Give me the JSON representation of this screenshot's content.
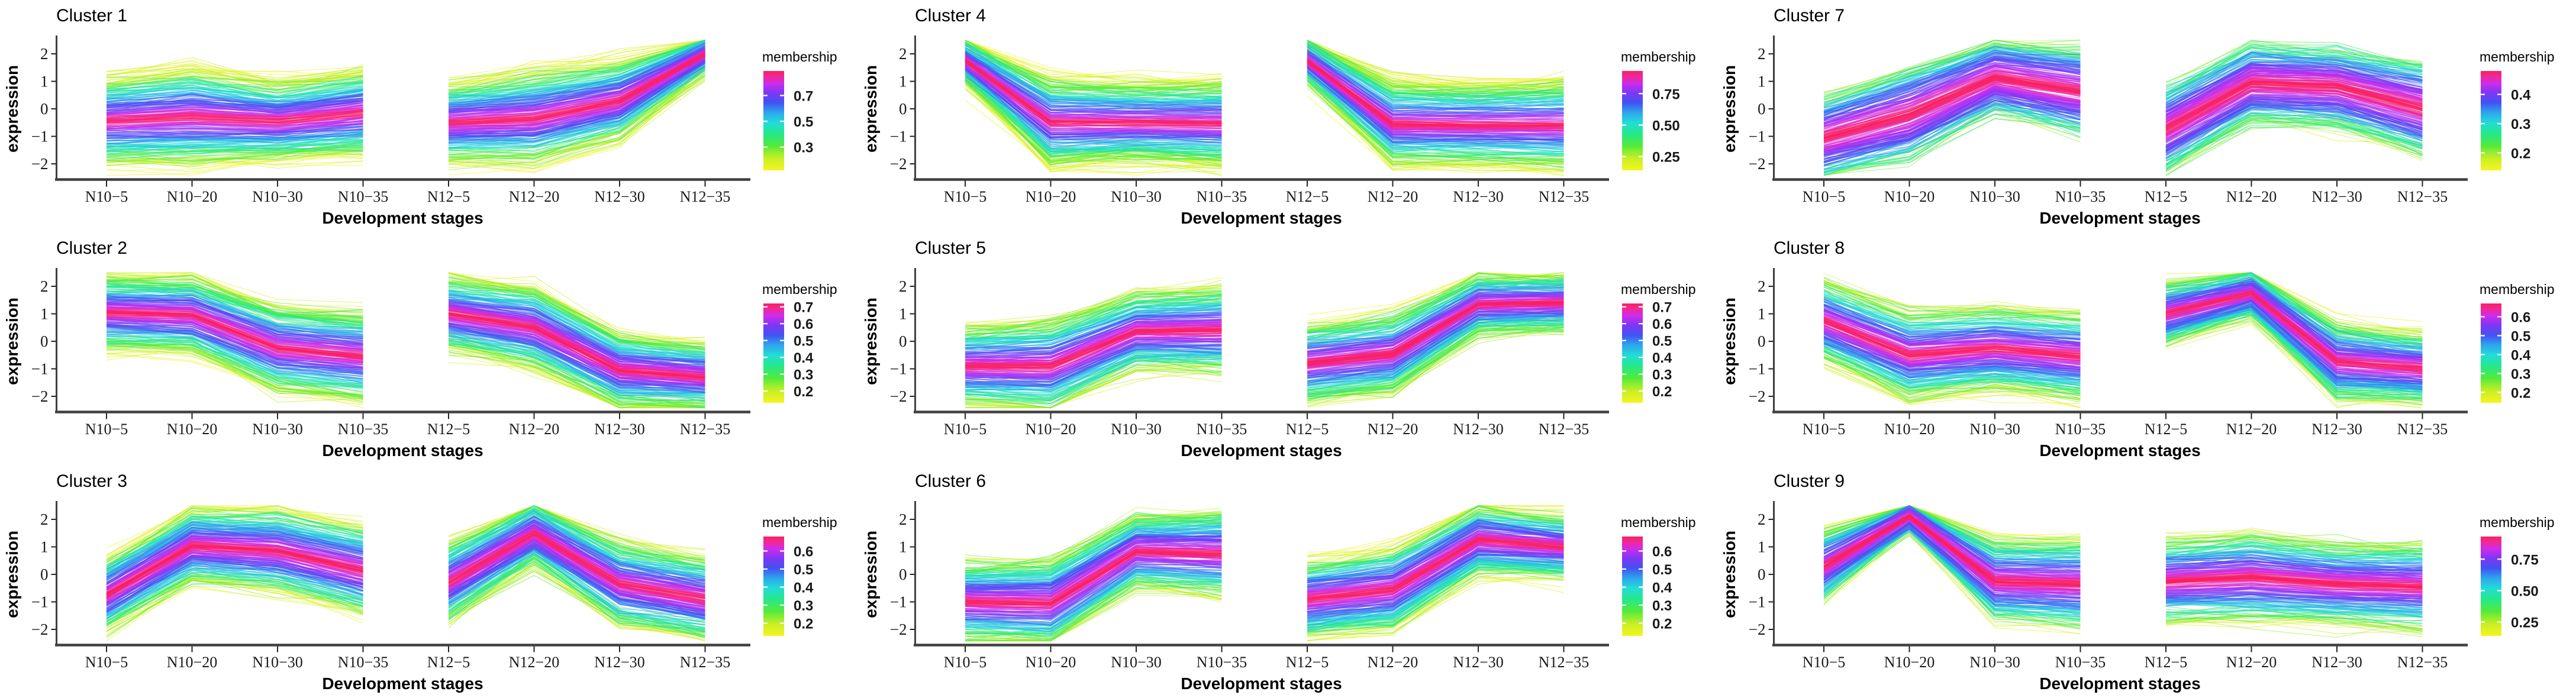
{
  "figure": {
    "y_axis_label": "expression",
    "x_axis_label": "Development stages",
    "legend_title": "membership",
    "stages": [
      "N10−5",
      "N10−20",
      "N10−30",
      "N10−35",
      "N12−5",
      "N12−20",
      "N12−30",
      "N12−35"
    ],
    "y_tick_labels": [
      "2",
      "1",
      "0",
      "−1",
      "−2"
    ],
    "y_tick_values": [
      2,
      1,
      0,
      -1,
      -2
    ],
    "ylim": [
      -2.45,
      2.55
    ],
    "groups": [
      [
        0,
        1,
        2,
        3
      ],
      [
        4,
        5,
        6,
        7
      ]
    ],
    "colormap": [
      {
        "t": 0.0,
        "color": "#f5f51f"
      },
      {
        "t": 0.12,
        "color": "#c8ef25"
      },
      {
        "t": 0.25,
        "color": "#52ea3c"
      },
      {
        "t": 0.37,
        "color": "#25e88c"
      },
      {
        "t": 0.48,
        "color": "#22dcd8"
      },
      {
        "t": 0.58,
        "color": "#2fa6ee"
      },
      {
        "t": 0.68,
        "color": "#4153f2"
      },
      {
        "t": 0.78,
        "color": "#7e37f4"
      },
      {
        "t": 0.87,
        "color": "#cb2cf0"
      },
      {
        "t": 0.94,
        "color": "#ef289c"
      },
      {
        "t": 1.0,
        "color": "#fa215e"
      }
    ],
    "axis_color": "#404040"
  },
  "chart_data": [
    {
      "type": "line",
      "title": "Cluster 1",
      "categories": [
        "N10−5",
        "N10−20",
        "N10−30",
        "N10−35",
        "N12−5",
        "N12−20",
        "N12−30",
        "N12−35"
      ],
      "xlabel": "Development stages",
      "ylabel": "expression",
      "ylim": [
        -2.45,
        2.55
      ],
      "series": [
        {
          "name": "cluster-center",
          "values": [
            -0.45,
            -0.3,
            -0.45,
            -0.15,
            -0.5,
            -0.35,
            0.3,
            2.0
          ]
        }
      ],
      "band_spread": [
        1.0,
        1.15,
        0.9,
        1.0,
        0.95,
        1.1,
        0.95,
        0.45
      ],
      "legend": {
        "title": "membership",
        "ticks": [
          "0.7",
          "0.5",
          "0.3"
        ],
        "tick_values": [
          0.7,
          0.5,
          0.3
        ],
        "mem_max": 0.89,
        "mem_min": 0.12
      },
      "gamma": 0.95,
      "seed": 11
    },
    {
      "type": "line",
      "title": "Cluster 4",
      "categories": [
        "N10−5",
        "N10−20",
        "N10−30",
        "N10−35",
        "N12−5",
        "N12−20",
        "N12−30",
        "N12−35"
      ],
      "xlabel": "Development stages",
      "ylabel": "expression",
      "ylim": [
        -2.45,
        2.55
      ],
      "series": [
        {
          "name": "cluster-center",
          "values": [
            1.75,
            -0.5,
            -0.5,
            -0.55,
            1.75,
            -0.55,
            -0.6,
            -0.6
          ]
        }
      ],
      "band_spread": [
        0.5,
        1.05,
        0.95,
        1.0,
        0.5,
        1.0,
        0.95,
        1.05
      ],
      "legend": {
        "title": "membership",
        "ticks": [
          "0.75",
          "0.50",
          "0.25"
        ],
        "tick_values": [
          0.75,
          0.5,
          0.25
        ],
        "mem_max": 0.93,
        "mem_min": 0.14
      },
      "gamma": 1.0,
      "seed": 44
    },
    {
      "type": "line",
      "title": "Cluster 7",
      "categories": [
        "N10−5",
        "N10−20",
        "N10−30",
        "N10−35",
        "N12−5",
        "N12−20",
        "N12−30",
        "N12−35"
      ],
      "xlabel": "Development stages",
      "ylabel": "expression",
      "ylim": [
        -2.45,
        2.55
      ],
      "series": [
        {
          "name": "cluster-center",
          "values": [
            -1.05,
            -0.2,
            1.15,
            0.65,
            -0.75,
            0.95,
            0.8,
            0.0
          ]
        }
      ],
      "band_spread": [
        0.9,
        1.05,
        0.8,
        0.95,
        0.9,
        0.85,
        0.85,
        1.0
      ],
      "legend": {
        "title": "membership",
        "ticks": [
          "0.4",
          "0.3",
          "0.2"
        ],
        "tick_values": [
          0.4,
          0.3,
          0.2
        ],
        "mem_max": 0.48,
        "mem_min": 0.14
      },
      "gamma": 0.5,
      "seed": 77
    },
    {
      "type": "line",
      "title": "Cluster 2",
      "categories": [
        "N10−5",
        "N10−20",
        "N10−30",
        "N10−35",
        "N12−5",
        "N12−20",
        "N12−30",
        "N12−35"
      ],
      "xlabel": "Development stages",
      "ylabel": "expression",
      "ylim": [
        -2.45,
        2.55
      ],
      "series": [
        {
          "name": "cluster-center",
          "values": [
            1.05,
            0.95,
            -0.25,
            -0.55,
            1.0,
            0.5,
            -1.05,
            -1.3
          ]
        }
      ],
      "band_spread": [
        0.85,
        0.9,
        1.0,
        1.05,
        0.85,
        0.95,
        0.85,
        0.75
      ],
      "legend": {
        "title": "membership",
        "ticks": [
          "0.7",
          "0.6",
          "0.5",
          "0.4",
          "0.3",
          "0.2"
        ],
        "tick_values": [
          0.7,
          0.6,
          0.5,
          0.4,
          0.3,
          0.2
        ],
        "mem_max": 0.72,
        "mem_min": 0.13
      },
      "gamma": 0.9,
      "seed": 22
    },
    {
      "type": "line",
      "title": "Cluster 5",
      "categories": [
        "N10−5",
        "N10−20",
        "N10−30",
        "N10−35",
        "N12−5",
        "N12−20",
        "N12−30",
        "N12−35"
      ],
      "xlabel": "Development stages",
      "ylabel": "expression",
      "ylim": [
        -2.45,
        2.55
      ],
      "series": [
        {
          "name": "cluster-center",
          "values": [
            -0.9,
            -0.9,
            0.35,
            0.4,
            -0.8,
            -0.45,
            1.35,
            1.4
          ]
        }
      ],
      "band_spread": [
        0.9,
        1.05,
        0.9,
        1.0,
        0.9,
        0.95,
        0.7,
        0.65
      ],
      "legend": {
        "title": "membership",
        "ticks": [
          "0.7",
          "0.6",
          "0.5",
          "0.4",
          "0.3",
          "0.2"
        ],
        "tick_values": [
          0.7,
          0.6,
          0.5,
          0.4,
          0.3,
          0.2
        ],
        "mem_max": 0.72,
        "mem_min": 0.13
      },
      "gamma": 0.9,
      "seed": 55
    },
    {
      "type": "line",
      "title": "Cluster 8",
      "categories": [
        "N10−5",
        "N10−20",
        "N10−30",
        "N10−35",
        "N12−5",
        "N12−20",
        "N12−30",
        "N12−35"
      ],
      "xlabel": "Development stages",
      "ylabel": "expression",
      "ylim": [
        -2.45,
        2.55
      ],
      "series": [
        {
          "name": "cluster-center",
          "values": [
            0.75,
            -0.5,
            -0.25,
            -0.55,
            1.0,
            1.75,
            -0.75,
            -1.0
          ]
        }
      ],
      "band_spread": [
        0.9,
        1.0,
        0.95,
        1.0,
        0.7,
        0.55,
        0.85,
        0.8
      ],
      "legend": {
        "title": "membership",
        "ticks": [
          "0.6",
          "0.5",
          "0.4",
          "0.3",
          "0.2"
        ],
        "tick_values": [
          0.6,
          0.5,
          0.4,
          0.3,
          0.2
        ],
        "mem_max": 0.67,
        "mem_min": 0.145
      },
      "gamma": 0.8,
      "seed": 88
    },
    {
      "type": "line",
      "title": "Cluster 3",
      "categories": [
        "N10−5",
        "N10−20",
        "N10−30",
        "N10−35",
        "N12−5",
        "N12−20",
        "N12−30",
        "N12−35"
      ],
      "xlabel": "Development stages",
      "ylabel": "expression",
      "ylim": [
        -2.45,
        2.55
      ],
      "series": [
        {
          "name": "cluster-center",
          "values": [
            -0.75,
            1.05,
            0.85,
            0.15,
            -0.3,
            1.5,
            -0.35,
            -0.9
          ]
        }
      ],
      "band_spread": [
        0.85,
        0.85,
        0.95,
        1.05,
        0.9,
        0.75,
        0.95,
        0.95
      ],
      "legend": {
        "title": "membership",
        "ticks": [
          "0.6",
          "0.5",
          "0.4",
          "0.3",
          "0.2"
        ],
        "tick_values": [
          0.6,
          0.5,
          0.4,
          0.3,
          0.2
        ],
        "mem_max": 0.68,
        "mem_min": 0.13
      },
      "gamma": 0.85,
      "seed": 33
    },
    {
      "type": "line",
      "title": "Cluster 6",
      "categories": [
        "N10−5",
        "N10−20",
        "N10−30",
        "N10−35",
        "N12−5",
        "N12−20",
        "N12−30",
        "N12−35"
      ],
      "xlabel": "Development stages",
      "ylabel": "expression",
      "ylim": [
        -2.45,
        2.55
      ],
      "series": [
        {
          "name": "cluster-center",
          "values": [
            -1.0,
            -1.05,
            0.85,
            0.75,
            -0.9,
            -0.55,
            1.25,
            1.0
          ]
        }
      ],
      "band_spread": [
        0.9,
        1.0,
        0.85,
        1.0,
        0.9,
        0.95,
        0.8,
        0.7
      ],
      "legend": {
        "title": "membership",
        "ticks": [
          "0.6",
          "0.5",
          "0.4",
          "0.3",
          "0.2"
        ],
        "tick_values": [
          0.6,
          0.5,
          0.4,
          0.3,
          0.2
        ],
        "mem_max": 0.68,
        "mem_min": 0.13
      },
      "gamma": 0.85,
      "seed": 66
    },
    {
      "type": "line",
      "title": "Cluster 9",
      "categories": [
        "N10−5",
        "N10−20",
        "N10−30",
        "N10−35",
        "N12−5",
        "N12−20",
        "N12−30",
        "N12−35"
      ],
      "xlabel": "Development stages",
      "ylabel": "expression",
      "ylim": [
        -2.45,
        2.55
      ],
      "series": [
        {
          "name": "cluster-center",
          "values": [
            0.3,
            2.1,
            -0.25,
            -0.35,
            -0.25,
            -0.1,
            -0.35,
            -0.45
          ]
        }
      ],
      "band_spread": [
        0.8,
        0.35,
        0.95,
        1.0,
        0.9,
        1.0,
        0.9,
        0.95
      ],
      "legend": {
        "title": "membership",
        "ticks": [
          "0.75",
          "0.50",
          "0.25"
        ],
        "tick_values": [
          0.75,
          0.5,
          0.25
        ],
        "mem_max": 0.93,
        "mem_min": 0.14
      },
      "gamma": 0.75,
      "seed": 99
    }
  ]
}
